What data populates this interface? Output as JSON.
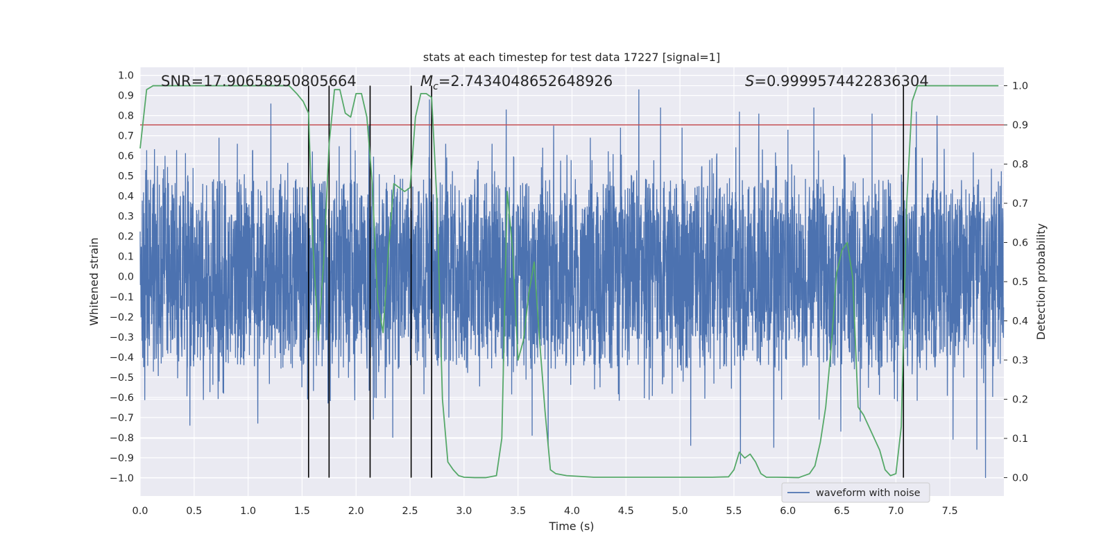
{
  "chart_data": {
    "type": "line",
    "title": "stats at each timestep for test data 17227 [signal=1]",
    "xlabel": "Time (s)",
    "ylabel": "Whitened strain",
    "y2label": "Detection probability",
    "xlim": [
      0.0,
      8.0
    ],
    "ylim": [
      -1.09,
      1.04
    ],
    "y2lim": [
      -0.047,
      1.047
    ],
    "x_ticks": [
      "0.0",
      "0.5",
      "1.0",
      "1.5",
      "2.0",
      "2.5",
      "3.0",
      "3.5",
      "4.0",
      "4.5",
      "5.0",
      "5.5",
      "6.0",
      "6.5",
      "7.0",
      "7.5"
    ],
    "y_ticks": [
      "1.0",
      "0.9",
      "0.8",
      "0.7",
      "0.6",
      "0.5",
      "0.4",
      "0.3",
      "0.2",
      "0.1",
      "0.0",
      "−0.1",
      "−0.2",
      "−0.3",
      "−0.4",
      "−0.5",
      "−0.6",
      "−0.7",
      "−0.8",
      "−0.9",
      "−1.0"
    ],
    "y2_ticks": [
      "1.0",
      "0.9",
      "0.8",
      "0.7",
      "0.6",
      "0.5",
      "0.4",
      "0.3",
      "0.2",
      "0.1",
      "0.0"
    ],
    "grid": true,
    "legend_position": "bottom-right",
    "annotations": {
      "snr": "SNR=17.90658950805664",
      "chirp_mass_symbol": "M",
      "chirp_mass_sub": "c",
      "chirp_mass_value": "=2.7434048652648926",
      "stat_symbol": "S",
      "stat_value": "=0.9999574422836304"
    },
    "threshold": 0.9,
    "vertical_markers_s": [
      1.56,
      1.75,
      2.13,
      2.51,
      2.7,
      7.07
    ],
    "series": [
      {
        "name": "waveform with noise",
        "axis": "left",
        "color": "#4c72b0",
        "sample_rate_hz": 512,
        "seed": 17227,
        "band_low": -0.32,
        "band_high": 0.35,
        "peaks": [
          {
            "x": 0.05,
            "y": 0.53
          },
          {
            "x": 0.16,
            "y": 0.55
          },
          {
            "x": 0.23,
            "y": 0.6
          },
          {
            "x": 0.49,
            "y": 0.54
          },
          {
            "x": 0.73,
            "y": 0.69
          },
          {
            "x": 0.9,
            "y": 0.66
          },
          {
            "x": 1.21,
            "y": 0.86
          },
          {
            "x": 1.55,
            "y": 0.65
          },
          {
            "x": 1.95,
            "y": 0.74
          },
          {
            "x": 2.12,
            "y": 0.75
          },
          {
            "x": 2.68,
            "y": 0.88
          },
          {
            "x": 2.83,
            "y": 0.66
          },
          {
            "x": 3.26,
            "y": 0.66
          },
          {
            "x": 3.39,
            "y": 0.83
          },
          {
            "x": 3.83,
            "y": 0.75
          },
          {
            "x": 4.17,
            "y": 0.69
          },
          {
            "x": 4.45,
            "y": 0.74
          },
          {
            "x": 4.62,
            "y": 0.93
          },
          {
            "x": 4.82,
            "y": 0.84
          },
          {
            "x": 5.02,
            "y": 0.74
          },
          {
            "x": 5.55,
            "y": 0.82
          },
          {
            "x": 5.73,
            "y": 0.81
          },
          {
            "x": 6.0,
            "y": 0.73
          },
          {
            "x": 6.24,
            "y": 0.84
          },
          {
            "x": 6.78,
            "y": 0.81
          },
          {
            "x": 7.19,
            "y": 0.82
          },
          {
            "x": 7.38,
            "y": 0.8
          },
          {
            "x": 7.53,
            "y": 0.72
          },
          {
            "x": 7.83,
            "y": 0.8
          },
          {
            "x": 0.46,
            "y": -0.74
          },
          {
            "x": 1.09,
            "y": -0.73
          },
          {
            "x": 1.55,
            "y": -0.61
          },
          {
            "x": 1.74,
            "y": -0.63
          },
          {
            "x": 2.16,
            "y": -0.71
          },
          {
            "x": 2.34,
            "y": -0.8
          },
          {
            "x": 2.86,
            "y": -0.7
          },
          {
            "x": 3.63,
            "y": -0.79
          },
          {
            "x": 3.78,
            "y": -0.85
          },
          {
            "x": 5.1,
            "y": -0.84
          },
          {
            "x": 5.56,
            "y": -0.93
          },
          {
            "x": 5.87,
            "y": -0.85
          },
          {
            "x": 6.29,
            "y": -0.71
          },
          {
            "x": 6.49,
            "y": -0.77
          },
          {
            "x": 6.67,
            "y": -0.72
          },
          {
            "x": 7.53,
            "y": -0.81
          },
          {
            "x": 7.75,
            "y": -0.86
          },
          {
            "x": 7.83,
            "y": -1.0
          }
        ]
      },
      {
        "name": "",
        "axis": "right",
        "color": "#55a868",
        "x": [
          0.0,
          0.06,
          0.12,
          0.2,
          0.3,
          0.4,
          0.5,
          0.6,
          0.7,
          0.8,
          0.9,
          1.0,
          1.1,
          1.2,
          1.3,
          1.38,
          1.45,
          1.51,
          1.56,
          1.6,
          1.65,
          1.7,
          1.75,
          1.8,
          1.85,
          1.9,
          1.95,
          2.0,
          2.05,
          2.1,
          2.15,
          2.2,
          2.25,
          2.3,
          2.35,
          2.4,
          2.45,
          2.5,
          2.55,
          2.6,
          2.65,
          2.7,
          2.75,
          2.8,
          2.85,
          2.9,
          2.95,
          3.0,
          3.1,
          3.2,
          3.3,
          3.35,
          3.4,
          3.45,
          3.5,
          3.55,
          3.6,
          3.65,
          3.7,
          3.75,
          3.8,
          3.85,
          3.95,
          4.2,
          4.5,
          5.0,
          5.3,
          5.45,
          5.5,
          5.55,
          5.6,
          5.65,
          5.7,
          5.75,
          5.8,
          5.9,
          6.1,
          6.2,
          6.25,
          6.3,
          6.35,
          6.4,
          6.45,
          6.5,
          6.55,
          6.6,
          6.65,
          6.7,
          6.75,
          6.8,
          6.85,
          6.9,
          6.95,
          7.0,
          7.05,
          7.1,
          7.15,
          7.2,
          7.3,
          7.5,
          7.7,
          7.95
        ],
        "y": [
          0.84,
          0.99,
          1.0,
          1.0,
          1.0,
          1.0,
          1.0,
          1.0,
          1.0,
          1.0,
          1.0,
          1.0,
          1.0,
          1.0,
          1.0,
          1.0,
          0.98,
          0.96,
          0.93,
          0.6,
          0.35,
          0.55,
          0.85,
          0.99,
          0.99,
          0.93,
          0.92,
          0.98,
          0.98,
          0.92,
          0.75,
          0.45,
          0.37,
          0.58,
          0.75,
          0.74,
          0.73,
          0.74,
          0.92,
          0.98,
          0.98,
          0.97,
          0.7,
          0.2,
          0.04,
          0.02,
          0.005,
          0.001,
          0.0,
          0.0,
          0.005,
          0.1,
          0.73,
          0.58,
          0.3,
          0.35,
          0.47,
          0.55,
          0.35,
          0.17,
          0.02,
          0.01,
          0.005,
          0.001,
          0.001,
          0.001,
          0.001,
          0.002,
          0.02,
          0.065,
          0.05,
          0.06,
          0.04,
          0.01,
          0.001,
          0.001,
          0.0,
          0.01,
          0.03,
          0.09,
          0.18,
          0.33,
          0.52,
          0.58,
          0.6,
          0.51,
          0.18,
          0.16,
          0.13,
          0.1,
          0.07,
          0.02,
          0.005,
          0.01,
          0.13,
          0.7,
          0.96,
          1.0,
          1.0,
          1.0,
          1.0,
          1.0
        ]
      }
    ]
  }
}
